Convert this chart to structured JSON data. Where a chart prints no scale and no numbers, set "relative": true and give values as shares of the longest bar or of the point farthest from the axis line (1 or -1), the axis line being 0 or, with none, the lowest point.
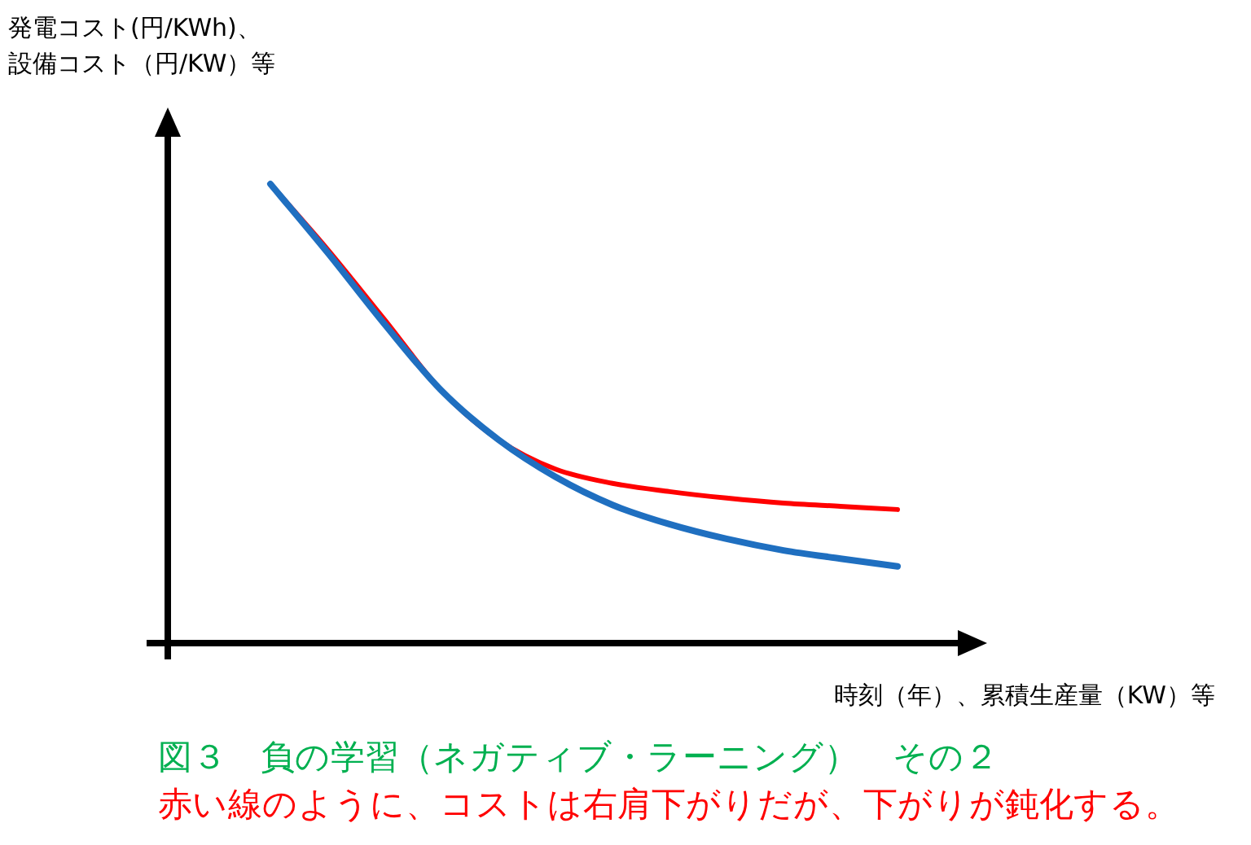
{
  "chart_data": {
    "type": "line",
    "relative": true,
    "ylabel": "発電コスト(円/KWh)、設備コスト（円/KW）等",
    "xlabel": "時刻（年）、累積生産量（KW）等",
    "categories": [
      null,
      null,
      null,
      null,
      null,
      null,
      null,
      null,
      null,
      null,
      null,
      null
    ],
    "series": [
      {
        "color": "#ff0000",
        "values": [
          1.0,
          0.858,
          0.705,
          0.55,
          0.443,
          0.379,
          0.348,
          0.33,
          0.316,
          0.305,
          0.298,
          0.291
        ]
      },
      {
        "color": "#1f6fc0",
        "values": [
          1.0,
          0.851,
          0.695,
          0.55,
          0.443,
          0.362,
          0.301,
          0.259,
          0.227,
          0.202,
          0.184,
          0.167
        ]
      }
    ],
    "annotations": [
      "図３　負の学習（ネガティブ・ラーニング）　その２",
      "赤い線のように、コストは右肩下がりだが、下がりが鈍化する。"
    ]
  }
}
